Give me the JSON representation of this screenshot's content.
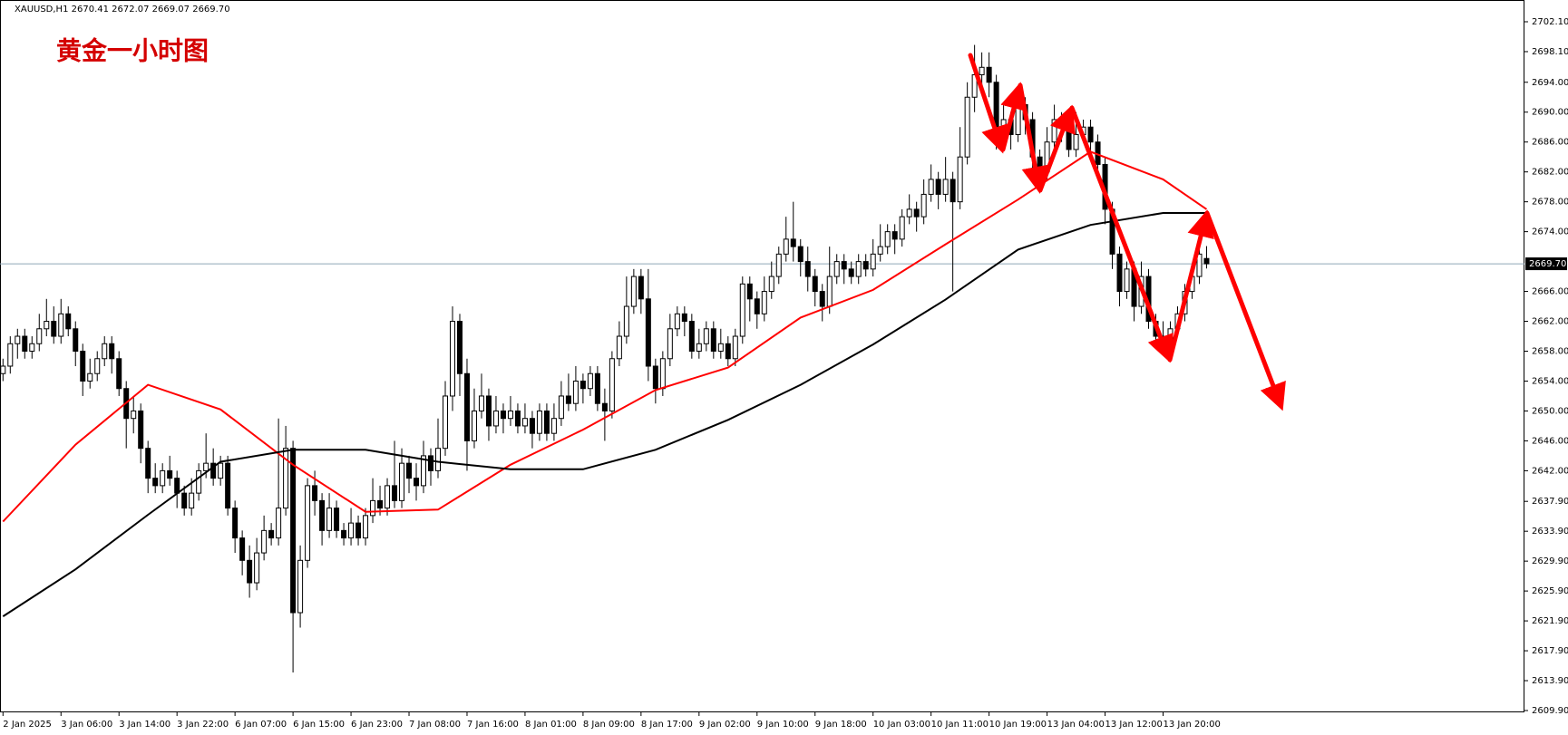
{
  "chart_data": {
    "type": "candlestick",
    "header": "XAUUSD,H1  2670.41 2672.07 2669.07 2669.70",
    "title": "黄金一小时图",
    "up_color": "#ffffff",
    "down_color": "#000000",
    "ylim": [
      2609.9,
      2702.1
    ],
    "yticks": [
      {
        "value": 2702.1,
        "label": "2702.10"
      },
      {
        "value": 2698.1,
        "label": "2698.10"
      },
      {
        "value": 2694,
        "label": "2694.00"
      },
      {
        "value": 2690,
        "label": "2690.00"
      },
      {
        "value": 2686,
        "label": "2686.00"
      },
      {
        "value": 2682,
        "label": "2682.00"
      },
      {
        "value": 2678,
        "label": "2678.00"
      },
      {
        "value": 2674,
        "label": "2674.00"
      },
      {
        "value": 2666,
        "label": "2666.00"
      },
      {
        "value": 2662,
        "label": "2662.00"
      },
      {
        "value": 2658,
        "label": "2658.00"
      },
      {
        "value": 2654,
        "label": "2654.00"
      },
      {
        "value": 2650,
        "label": "2650.00"
      },
      {
        "value": 2646,
        "label": "2646.00"
      },
      {
        "value": 2642,
        "label": "2642.00"
      },
      {
        "value": 2637.9,
        "label": "2637.90"
      },
      {
        "value": 2633.9,
        "label": "2633.90"
      },
      {
        "value": 2629.9,
        "label": "2629.90"
      },
      {
        "value": 2625.9,
        "label": "2625.90"
      },
      {
        "value": 2621.9,
        "label": "2621.90"
      },
      {
        "value": 2617.9,
        "label": "2617.90"
      },
      {
        "value": 2613.9,
        "label": "2613.90"
      },
      {
        "value": 2609.9,
        "label": "2609.90"
      }
    ],
    "last_price": {
      "value": 2669.7,
      "label": "2669.70",
      "color": "#8fa8b8"
    },
    "xticks": [
      {
        "value": 0,
        "label": "2 Jan 2025"
      },
      {
        "value": 8,
        "label": "3 Jan 06:00"
      },
      {
        "value": 16,
        "label": "3 Jan 14:00"
      },
      {
        "value": 24,
        "label": "3 Jan 22:00"
      },
      {
        "value": 32,
        "label": "6 Jan 07:00"
      },
      {
        "value": 40,
        "label": "6 Jan 15:00"
      },
      {
        "value": 48,
        "label": "6 Jan 23:00"
      },
      {
        "value": 56,
        "label": "7 Jan 08:00"
      },
      {
        "value": 64,
        "label": "7 Jan 16:00"
      },
      {
        "value": 72,
        "label": "8 Jan 01:00"
      },
      {
        "value": 80,
        "label": "8 Jan 09:00"
      },
      {
        "value": 88,
        "label": "8 Jan 17:00"
      },
      {
        "value": 96,
        "label": "9 Jan 02:00"
      },
      {
        "value": 104,
        "label": "9 Jan 10:00"
      },
      {
        "value": 112,
        "label": "9 Jan 18:00"
      },
      {
        "value": 120,
        "label": "10 Jan 03:00"
      },
      {
        "value": 128,
        "label": "10 Jan 11:00"
      },
      {
        "value": 136,
        "label": "10 Jan 19:00"
      },
      {
        "value": 144,
        "label": "13 Jan 04:00"
      },
      {
        "value": 152,
        "label": "13 Jan 12:00"
      },
      {
        "value": 160,
        "label": "13 Jan 20:00"
      }
    ],
    "ohlc": [
      [
        2655,
        2657,
        2654,
        2656
      ],
      [
        2656,
        2660,
        2655,
        2659
      ],
      [
        2659,
        2661,
        2657,
        2660
      ],
      [
        2660,
        2661,
        2657,
        2658
      ],
      [
        2658,
        2660,
        2657,
        2659
      ],
      [
        2659,
        2663,
        2658,
        2661
      ],
      [
        2661,
        2665,
        2660,
        2662
      ],
      [
        2662,
        2664,
        2659,
        2660
      ],
      [
        2660,
        2665,
        2659,
        2663
      ],
      [
        2663,
        2664,
        2660,
        2661
      ],
      [
        2661,
        2662,
        2656,
        2658
      ],
      [
        2658,
        2659,
        2652,
        2654
      ],
      [
        2654,
        2657,
        2653,
        2655
      ],
      [
        2655,
        2658,
        2654,
        2657
      ],
      [
        2657,
        2660,
        2656,
        2659
      ],
      [
        2659,
        2660,
        2655,
        2657
      ],
      [
        2657,
        2658,
        2652,
        2653
      ],
      [
        2653,
        2654,
        2645,
        2649
      ],
      [
        2649,
        2652,
        2647,
        2650
      ],
      [
        2650,
        2651,
        2643,
        2645
      ],
      [
        2645,
        2646,
        2639,
        2641
      ],
      [
        2641,
        2643,
        2639,
        2640
      ],
      [
        2640,
        2643,
        2639,
        2642
      ],
      [
        2642,
        2644,
        2640,
        2641
      ],
      [
        2641,
        2642,
        2637,
        2639
      ],
      [
        2639,
        2640,
        2636,
        2637
      ],
      [
        2637,
        2641,
        2636,
        2639
      ],
      [
        2639,
        2643,
        2638,
        2642
      ],
      [
        2642,
        2647,
        2641,
        2643
      ],
      [
        2643,
        2645,
        2640,
        2641
      ],
      [
        2641,
        2644,
        2640,
        2643
      ],
      [
        2643,
        2644,
        2636,
        2637
      ],
      [
        2637,
        2638,
        2631,
        2633
      ],
      [
        2633,
        2634,
        2628,
        2630
      ],
      [
        2630,
        2632,
        2625,
        2627
      ],
      [
        2627,
        2633,
        2626,
        2631
      ],
      [
        2631,
        2636,
        2630,
        2634
      ],
      [
        2634,
        2635,
        2632,
        2633
      ],
      [
        2633,
        2649,
        2632,
        2637
      ],
      [
        2637,
        2648,
        2636,
        2645
      ],
      [
        2645,
        2646,
        2615,
        2623
      ],
      [
        2623,
        2632,
        2621,
        2630
      ],
      [
        2630,
        2641,
        2629,
        2640
      ],
      [
        2640,
        2642,
        2636,
        2638
      ],
      [
        2638,
        2639,
        2632,
        2634
      ],
      [
        2634,
        2639,
        2633,
        2637
      ],
      [
        2637,
        2638,
        2633,
        2634
      ],
      [
        2634,
        2635,
        2632,
        2633
      ],
      [
        2633,
        2637,
        2632,
        2635
      ],
      [
        2635,
        2636,
        2632,
        2633
      ],
      [
        2633,
        2637,
        2632,
        2636
      ],
      [
        2636,
        2641,
        2635,
        2638
      ],
      [
        2638,
        2640,
        2636,
        2637
      ],
      [
        2637,
        2641,
        2636,
        2640
      ],
      [
        2640,
        2646,
        2637,
        2638
      ],
      [
        2638,
        2645,
        2637,
        2643
      ],
      [
        2643,
        2644,
        2639,
        2641
      ],
      [
        2641,
        2643,
        2638,
        2640
      ],
      [
        2640,
        2646,
        2639,
        2644
      ],
      [
        2644,
        2645,
        2640,
        2642
      ],
      [
        2642,
        2649,
        2641,
        2645
      ],
      [
        2645,
        2654,
        2644,
        2652
      ],
      [
        2652,
        2664,
        2650,
        2662
      ],
      [
        2662,
        2663,
        2652,
        2655
      ],
      [
        2655,
        2657,
        2642,
        2646
      ],
      [
        2646,
        2653,
        2645,
        2650
      ],
      [
        2650,
        2655,
        2649,
        2652
      ],
      [
        2652,
        2653,
        2646,
        2648
      ],
      [
        2648,
        2652,
        2647,
        2650
      ],
      [
        2650,
        2651,
        2647,
        2649
      ],
      [
        2649,
        2652,
        2648,
        2650
      ],
      [
        2650,
        2651,
        2647,
        2648
      ],
      [
        2648,
        2651,
        2647,
        2649
      ],
      [
        2649,
        2650,
        2645,
        2647
      ],
      [
        2647,
        2651,
        2646,
        2650
      ],
      [
        2650,
        2651,
        2646,
        2647
      ],
      [
        2647,
        2651,
        2646,
        2649
      ],
      [
        2649,
        2654,
        2648,
        2652
      ],
      [
        2652,
        2655,
        2650,
        2651
      ],
      [
        2651,
        2656,
        2650,
        2654
      ],
      [
        2654,
        2655,
        2651,
        2653
      ],
      [
        2653,
        2656,
        2652,
        2655
      ],
      [
        2655,
        2656,
        2650,
        2651
      ],
      [
        2651,
        2653,
        2646,
        2650
      ],
      [
        2650,
        2658,
        2649,
        2657
      ],
      [
        2657,
        2662,
        2656,
        2660
      ],
      [
        2660,
        2668,
        2659,
        2664
      ],
      [
        2664,
        2669,
        2663,
        2668
      ],
      [
        2668,
        2669,
        2663,
        2665
      ],
      [
        2665,
        2669,
        2654,
        2656
      ],
      [
        2656,
        2657,
        2651,
        2653
      ],
      [
        2653,
        2658,
        2652,
        2657
      ],
      [
        2657,
        2663,
        2656,
        2661
      ],
      [
        2661,
        2664,
        2660,
        2663
      ],
      [
        2663,
        2664,
        2660,
        2662
      ],
      [
        2662,
        2663,
        2657,
        2658
      ],
      [
        2658,
        2661,
        2657,
        2659
      ],
      [
        2659,
        2662,
        2658,
        2661
      ],
      [
        2661,
        2662,
        2657,
        2658
      ],
      [
        2658,
        2661,
        2657,
        2659
      ],
      [
        2659,
        2660,
        2656,
        2657
      ],
      [
        2657,
        2661,
        2656,
        2660
      ],
      [
        2660,
        2668,
        2659,
        2667
      ],
      [
        2667,
        2668,
        2662,
        2665
      ],
      [
        2665,
        2666,
        2661,
        2663
      ],
      [
        2663,
        2668,
        2662,
        2666
      ],
      [
        2666,
        2670,
        2665,
        2668
      ],
      [
        2668,
        2672,
        2667,
        2671
      ],
      [
        2671,
        2676,
        2670,
        2673
      ],
      [
        2673,
        2678,
        2670,
        2672
      ],
      [
        2672,
        2673,
        2668,
        2670
      ],
      [
        2670,
        2672,
        2666,
        2668
      ],
      [
        2668,
        2669,
        2664,
        2666
      ],
      [
        2666,
        2667,
        2662,
        2664
      ],
      [
        2664,
        2672,
        2663,
        2668
      ],
      [
        2668,
        2671,
        2667,
        2670
      ],
      [
        2670,
        2671,
        2667,
        2669
      ],
      [
        2669,
        2670,
        2667,
        2668
      ],
      [
        2668,
        2671,
        2667,
        2670
      ],
      [
        2670,
        2671,
        2668,
        2669
      ],
      [
        2669,
        2673,
        2668,
        2671
      ],
      [
        2671,
        2675,
        2670,
        2672
      ],
      [
        2672,
        2675,
        2671,
        2674
      ],
      [
        2674,
        2675,
        2671,
        2673
      ],
      [
        2673,
        2677,
        2672,
        2676
      ],
      [
        2676,
        2679,
        2675,
        2677
      ],
      [
        2677,
        2678,
        2674,
        2676
      ],
      [
        2676,
        2681,
        2675,
        2679
      ],
      [
        2679,
        2683,
        2678,
        2681
      ],
      [
        2681,
        2682,
        2677,
        2679
      ],
      [
        2679,
        2684,
        2678,
        2681
      ],
      [
        2681,
        2682,
        2666,
        2678
      ],
      [
        2678,
        2688,
        2677,
        2684
      ],
      [
        2684,
        2694,
        2683,
        2692
      ],
      [
        2692,
        2699,
        2690,
        2695
      ],
      [
        2695,
        2698,
        2693,
        2696
      ],
      [
        2696,
        2698,
        2692,
        2694
      ],
      [
        2694,
        2695,
        2685,
        2686
      ],
      [
        2686,
        2691,
        2685,
        2689
      ],
      [
        2689,
        2690,
        2685,
        2687
      ],
      [
        2687,
        2693,
        2686,
        2691
      ],
      [
        2691,
        2692,
        2687,
        2689
      ],
      [
        2689,
        2690,
        2682,
        2684
      ],
      [
        2684,
        2685,
        2680,
        2682
      ],
      [
        2682,
        2688,
        2681,
        2686
      ],
      [
        2686,
        2691,
        2685,
        2689
      ],
      [
        2689,
        2690,
        2686,
        2688
      ],
      [
        2688,
        2689,
        2684,
        2685
      ],
      [
        2685,
        2690,
        2684,
        2687
      ],
      [
        2687,
        2689,
        2686,
        2688
      ],
      [
        2688,
        2689,
        2684,
        2686
      ],
      [
        2686,
        2687,
        2681,
        2683
      ],
      [
        2683,
        2684,
        2675,
        2677
      ],
      [
        2677,
        2678,
        2669,
        2671
      ],
      [
        2671,
        2672,
        2664,
        2666
      ],
      [
        2666,
        2670,
        2665,
        2669
      ],
      [
        2669,
        2670,
        2662,
        2664
      ],
      [
        2664,
        2670,
        2663,
        2668
      ],
      [
        2668,
        2669,
        2661,
        2662
      ],
      [
        2662,
        2663,
        2659,
        2660
      ],
      [
        2660,
        2662,
        2658,
        2659
      ],
      [
        2659,
        2662,
        2658,
        2661
      ],
      [
        2661,
        2664,
        2660,
        2663
      ],
      [
        2663,
        2667,
        2662,
        2666
      ],
      [
        2666,
        2669,
        2665,
        2668
      ],
      [
        2668,
        2672,
        2667,
        2671
      ],
      [
        2670.41,
        2672.07,
        2669.07,
        2669.7
      ]
    ],
    "lines": [
      {
        "color": "#ff0000",
        "x": [
          0,
          10,
          20,
          30,
          40,
          50,
          60,
          70,
          80,
          90,
          100,
          110,
          120,
          130,
          140,
          150,
          160,
          166
        ],
        "values": [
          2635.2,
          2645.5,
          2653.5,
          2650.2,
          2642.8,
          2636.5,
          2636.8,
          2642.8,
          2647.5,
          2652.8,
          2655.8,
          2662.5,
          2666.2,
          2672.3,
          2678.3,
          2684.7,
          2681,
          2677
        ]
      },
      {
        "color": "#000000",
        "x": [
          0,
          10,
          20,
          30,
          40,
          50,
          60,
          70,
          80,
          90,
          100,
          110,
          120,
          130,
          140,
          150,
          160,
          166
        ],
        "values": [
          2622.5,
          2628.8,
          2636.1,
          2643.2,
          2644.8,
          2644.8,
          2643.2,
          2642.2,
          2642.2,
          2644.8,
          2648.8,
          2653.5,
          2658.9,
          2664.9,
          2671.6,
          2674.9,
          2676.5,
          2676.5
        ]
      }
    ]
  }
}
